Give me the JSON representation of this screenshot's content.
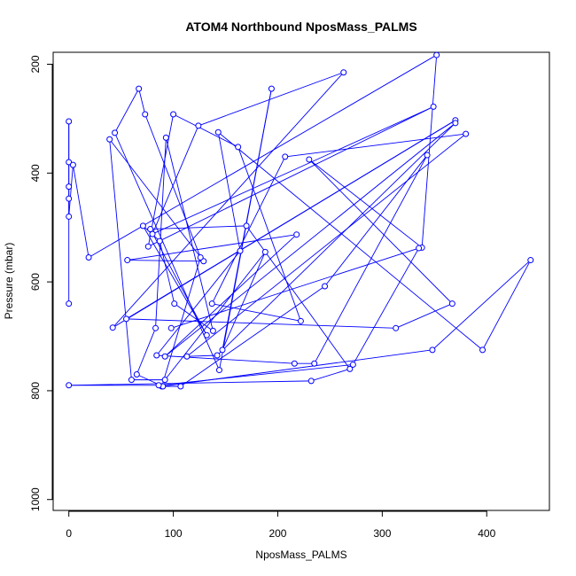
{
  "chart_data": {
    "type": "line",
    "title": "ATOM4 Northbound NposMass_PALMS",
    "xlabel": "NposMass_PALMS",
    "ylabel": "Pressure (mbar)",
    "xlim": [
      -15,
      460
    ],
    "ylim": [
      1020,
      178
    ],
    "y_reversed": true,
    "xticks": [
      0,
      100,
      200,
      300,
      400
    ],
    "yticks": [
      200,
      400,
      600,
      800,
      1000
    ],
    "series_color": "#0000ff",
    "marker": "open-circle",
    "series": [
      {
        "points": [
          [
            0,
            640
          ],
          [
            0,
            305
          ],
          [
            0,
            380
          ],
          [
            0,
            425
          ],
          [
            0,
            447
          ],
          [
            0,
            480
          ],
          [
            4,
            385
          ],
          [
            19,
            555
          ],
          [
            352,
            183
          ],
          [
            338,
            537
          ],
          [
            230,
            375
          ],
          [
            367,
            640
          ],
          [
            313,
            685
          ],
          [
            55,
            668
          ],
          [
            370,
            303
          ],
          [
            42,
            684
          ],
          [
            263,
            215
          ],
          [
            124,
            313
          ],
          [
            80,
            512
          ],
          [
            349,
            278
          ],
          [
            76,
            535
          ],
          [
            100,
            292
          ],
          [
            162,
            352
          ],
          [
            222,
            672
          ],
          [
            137,
            640
          ],
          [
            207,
            370
          ],
          [
            380,
            328
          ],
          [
            113,
            737
          ],
          [
            142,
            735
          ],
          [
            370,
            308
          ],
          [
            92,
            737
          ],
          [
            218,
            513
          ],
          [
            56,
            560
          ],
          [
            129,
            562
          ],
          [
            39,
            338
          ],
          [
            60,
            780
          ],
          [
            92,
            780
          ],
          [
            188,
            545
          ],
          [
            147,
            725
          ],
          [
            194,
            245
          ],
          [
            144,
            762
          ],
          [
            44,
            326
          ],
          [
            67,
            245
          ],
          [
            73,
            292
          ],
          [
            126,
            555
          ],
          [
            89,
            792
          ],
          [
            348,
            725
          ],
          [
            442,
            560
          ],
          [
            396,
            725
          ],
          [
            143,
            325
          ],
          [
            164,
            543
          ],
          [
            84,
            735
          ],
          [
            216,
            750
          ],
          [
            235,
            750
          ],
          [
            343,
            367
          ],
          [
            245,
            608
          ],
          [
            107,
            792
          ],
          [
            90,
            792
          ],
          [
            65,
            770
          ],
          [
            83,
            685
          ],
          [
            93,
            335
          ],
          [
            138,
            690
          ],
          [
            101,
            640
          ],
          [
            87,
            525
          ],
          [
            71,
            497
          ],
          [
            132,
            698
          ],
          [
            78,
            503
          ],
          [
            170,
            497
          ],
          [
            269,
            760
          ],
          [
            232,
            782
          ],
          [
            0,
            790
          ],
          [
            86,
            790
          ],
          [
            272,
            752
          ],
          [
            335,
            538
          ],
          [
            98,
            685
          ]
        ]
      }
    ]
  }
}
